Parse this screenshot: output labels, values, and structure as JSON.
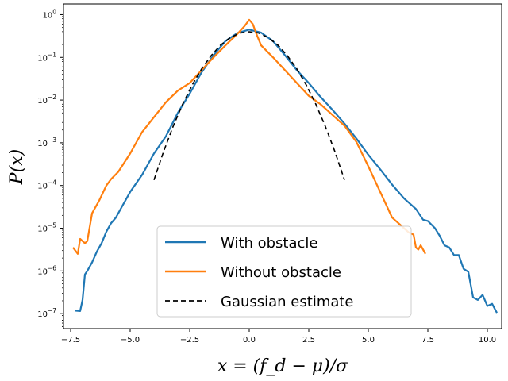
{
  "chart_data": {
    "type": "line",
    "title": "",
    "xlabel": "x = (f_d − μ)/σ",
    "ylabel": "P(x)",
    "xlim": [
      -7.8,
      10.6
    ],
    "ylim_log10": [
      -7.35,
      0.25
    ],
    "yscale": "log",
    "grid": false,
    "legend_position": "lower center",
    "x_ticks": [
      -7.5,
      -5.0,
      -2.5,
      0.0,
      2.5,
      5.0,
      7.5,
      10.0
    ],
    "x_tick_labels": [
      "−7.5",
      "−5.0",
      "−2.5",
      "0.0",
      "2.5",
      "5.0",
      "7.5",
      "10.0"
    ],
    "y_ticks_exp": [
      0,
      -1,
      -2,
      -3,
      -4,
      -5,
      -6,
      -7
    ],
    "series": [
      {
        "name": "With obstacle",
        "color": "#1f77b4",
        "style": "solid",
        "x": [
          -7.3,
          -7.1,
          -7.0,
          -6.9,
          -6.8,
          -6.6,
          -6.4,
          -6.2,
          -6.0,
          -5.8,
          -5.6,
          -5.3,
          -5.0,
          -4.5,
          -4.0,
          -3.5,
          -3.0,
          -2.5,
          -2.0,
          -1.5,
          -1.0,
          -0.5,
          0.0,
          0.5,
          1.0,
          1.5,
          2.0,
          2.5,
          3.0,
          3.5,
          4.0,
          4.5,
          5.0,
          5.5,
          6.0,
          6.5,
          7.0,
          7.3,
          7.5,
          7.8,
          8.0,
          8.2,
          8.4,
          8.6,
          8.8,
          9.0,
          9.2,
          9.4,
          9.6,
          9.8,
          10.0,
          10.2,
          10.4
        ],
        "y_log10": [
          -6.93,
          -6.94,
          -6.68,
          -6.08,
          -6.0,
          -5.8,
          -5.55,
          -5.35,
          -5.08,
          -4.88,
          -4.75,
          -4.45,
          -4.15,
          -3.75,
          -3.25,
          -2.85,
          -2.3,
          -1.85,
          -1.35,
          -0.95,
          -0.62,
          -0.43,
          -0.35,
          -0.42,
          -0.62,
          -0.95,
          -1.3,
          -1.6,
          -1.93,
          -2.23,
          -2.55,
          -2.9,
          -3.28,
          -3.62,
          -3.98,
          -4.3,
          -4.55,
          -4.8,
          -4.83,
          -5.0,
          -5.18,
          -5.4,
          -5.45,
          -5.63,
          -5.63,
          -5.95,
          -6.02,
          -6.62,
          -6.68,
          -6.56,
          -6.82,
          -6.77,
          -6.98
        ]
      },
      {
        "name": "Without obstacle",
        "color": "#ff7f0e",
        "style": "solid",
        "x": [
          -7.4,
          -7.2,
          -7.1,
          -6.9,
          -6.8,
          -6.6,
          -6.3,
          -6.0,
          -5.8,
          -5.5,
          -5.0,
          -4.5,
          -4.0,
          -3.5,
          -3.0,
          -2.5,
          -2.0,
          -1.5,
          -1.0,
          -0.5,
          -0.2,
          0.0,
          0.15,
          0.3,
          0.5,
          1.0,
          1.5,
          2.0,
          2.5,
          3.0,
          3.5,
          4.0,
          4.5,
          5.0,
          5.5,
          6.0,
          6.5,
          6.7,
          6.9,
          7.0,
          7.1,
          7.2,
          7.3,
          7.4
        ],
        "y_log10": [
          -5.45,
          -5.6,
          -5.25,
          -5.35,
          -5.3,
          -4.65,
          -4.35,
          -4.0,
          -3.85,
          -3.68,
          -3.25,
          -2.75,
          -2.4,
          -2.05,
          -1.78,
          -1.6,
          -1.3,
          -1.0,
          -0.72,
          -0.45,
          -0.27,
          -0.12,
          -0.22,
          -0.45,
          -0.72,
          -1.0,
          -1.3,
          -1.6,
          -1.9,
          -2.1,
          -2.35,
          -2.6,
          -2.98,
          -3.55,
          -4.15,
          -4.75,
          -5.0,
          -5.1,
          -5.15,
          -5.45,
          -5.5,
          -5.4,
          -5.5,
          -5.6
        ]
      },
      {
        "name": "Gaussian estimate",
        "color": "#000000",
        "style": "dashed",
        "x": [
          -4.0,
          -3.6,
          -3.2,
          -2.8,
          -2.4,
          -2.0,
          -1.6,
          -1.2,
          -0.8,
          -0.4,
          0.0,
          0.4,
          0.8,
          1.2,
          1.6,
          2.0,
          2.4,
          2.8,
          3.2,
          3.6,
          4.0
        ],
        "y_log10": [
          -3.87,
          -3.21,
          -2.62,
          -2.1,
          -1.65,
          -1.27,
          -0.96,
          -0.71,
          -0.54,
          -0.43,
          -0.4,
          -0.43,
          -0.54,
          -0.71,
          -0.96,
          -1.27,
          -1.65,
          -2.1,
          -2.62,
          -3.21,
          -3.87
        ]
      }
    ]
  }
}
